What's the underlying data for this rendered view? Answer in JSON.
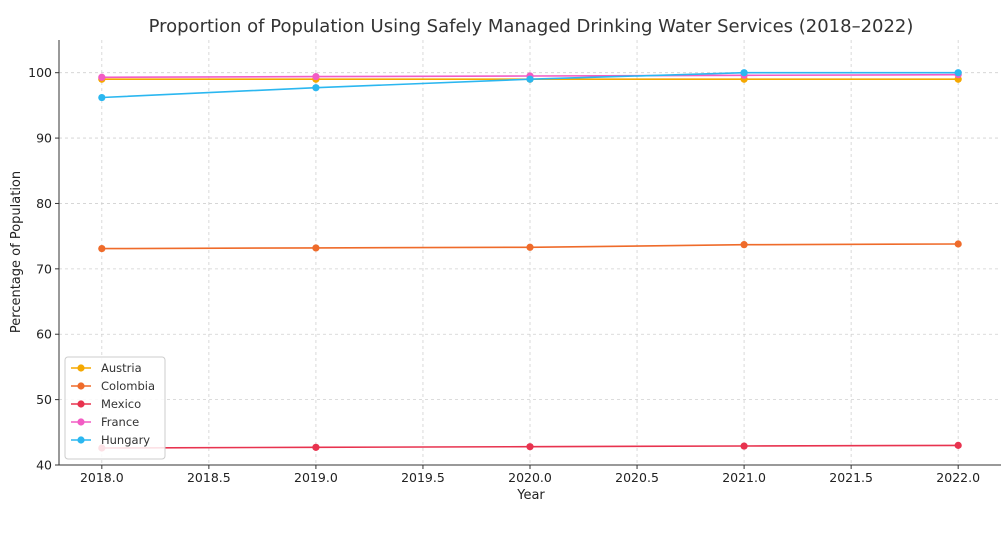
{
  "chart_data": {
    "type": "line",
    "title": "Proportion of Population Using Safely Managed Drinking Water Services (2018–2022)",
    "xlabel": "Year",
    "ylabel": "Percentage of Population",
    "x": [
      2018,
      2019,
      2020,
      2021,
      2022
    ],
    "xlim": [
      2017.8,
      2022.2
    ],
    "ylim": [
      40,
      105
    ],
    "x_ticks": [
      2018.0,
      2018.5,
      2019.0,
      2019.5,
      2020.0,
      2020.5,
      2021.0,
      2021.5,
      2022.0
    ],
    "x_tick_labels": [
      "2018.0",
      "2018.5",
      "2019.0",
      "2019.5",
      "2020.0",
      "2020.5",
      "2021.0",
      "2021.5",
      "2022.0"
    ],
    "y_ticks": [
      40,
      50,
      60,
      70,
      80,
      90,
      100
    ],
    "y_tick_labels": [
      "40",
      "50",
      "60",
      "70",
      "80",
      "90",
      "100"
    ],
    "grid": true,
    "legend_position": "lower-left",
    "series": [
      {
        "name": "Austria",
        "color": "#f5a800",
        "values": [
          99.0,
          99.0,
          99.0,
          99.0,
          99.0
        ]
      },
      {
        "name": "Colombia",
        "color": "#ef6b2a",
        "values": [
          73.1,
          73.2,
          73.3,
          73.7,
          73.8
        ]
      },
      {
        "name": "Mexico",
        "color": "#e8334f",
        "values": [
          42.6,
          42.7,
          42.8,
          42.9,
          43.0
        ]
      },
      {
        "name": "France",
        "color": "#f25cc4",
        "values": [
          99.3,
          99.4,
          99.5,
          99.6,
          99.7
        ]
      },
      {
        "name": "Hungary",
        "color": "#2bb7f0",
        "values": [
          96.2,
          97.7,
          99.0,
          100.0,
          100.0
        ]
      }
    ]
  }
}
